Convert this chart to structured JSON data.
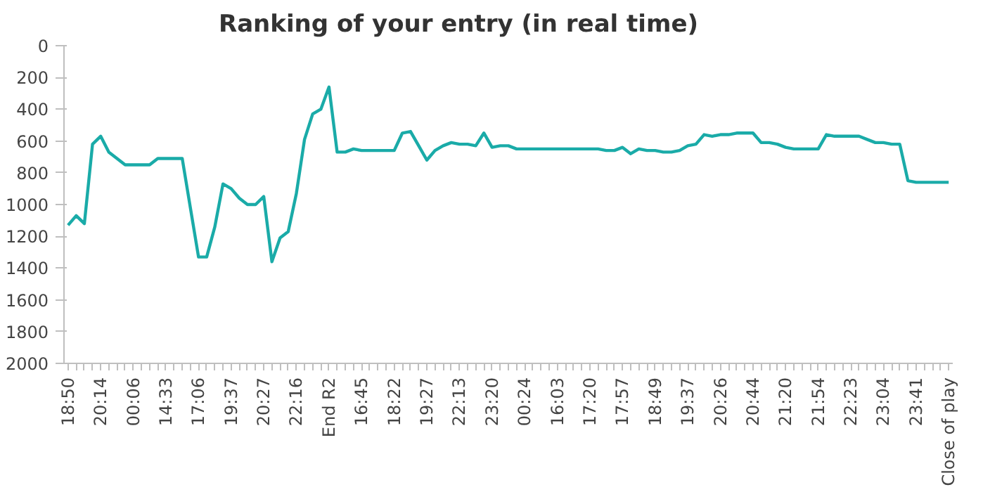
{
  "chart_data": {
    "type": "line",
    "title": "Ranking of your entry (in real time)",
    "categories": [
      "18:50",
      null,
      null,
      null,
      "20:14",
      null,
      null,
      null,
      "00:06",
      null,
      null,
      null,
      "14:33",
      null,
      null,
      null,
      "17:06",
      null,
      null,
      null,
      "19:37",
      null,
      null,
      null,
      "20:27",
      null,
      null,
      null,
      "22:16",
      null,
      null,
      null,
      "End R2",
      null,
      null,
      null,
      "16:45",
      null,
      null,
      null,
      "18:22",
      null,
      null,
      null,
      "19:27",
      null,
      null,
      null,
      "22:13",
      null,
      null,
      null,
      "23:20",
      null,
      null,
      null,
      "00:24",
      null,
      null,
      null,
      "16:03",
      null,
      null,
      null,
      "17:20",
      null,
      null,
      null,
      "17:57",
      null,
      null,
      null,
      "18:49",
      null,
      null,
      null,
      "19:37",
      null,
      null,
      null,
      "20:26",
      null,
      null,
      null,
      "20:44",
      null,
      null,
      null,
      "21:20",
      null,
      null,
      null,
      "21:54",
      null,
      null,
      null,
      "22:23",
      null,
      null,
      null,
      "23:04",
      null,
      null,
      null,
      "23:41",
      null,
      null,
      null,
      "Close of play"
    ],
    "series": [
      {
        "color": "#1aaba8",
        "values": [
          1130,
          1070,
          1120,
          620,
          570,
          670,
          710,
          750,
          750,
          750,
          750,
          710,
          710,
          710,
          710,
          1020,
          1330,
          1330,
          1140,
          870,
          900,
          960,
          1000,
          1000,
          950,
          1360,
          1210,
          1170,
          930,
          590,
          430,
          400,
          260,
          670,
          670,
          650,
          660,
          660,
          660,
          660,
          660,
          550,
          540,
          630,
          720,
          660,
          630,
          610,
          620,
          620,
          630,
          550,
          640,
          630,
          630,
          650,
          650,
          650,
          650,
          650,
          650,
          650,
          650,
          650,
          650,
          650,
          660,
          660,
          640,
          680,
          650,
          660,
          660,
          670,
          670,
          660,
          630,
          620,
          560,
          570,
          560,
          560,
          550,
          550,
          550,
          610,
          610,
          620,
          640,
          650,
          650,
          650,
          650,
          560,
          570,
          570,
          570,
          570,
          590,
          610,
          610,
          620,
          620,
          850,
          860,
          860,
          860,
          860,
          860
        ]
      }
    ],
    "ylim": [
      2000,
      0
    ],
    "yticks": [
      0,
      200,
      400,
      600,
      800,
      1000,
      1200,
      1400,
      1600,
      1800,
      2000
    ],
    "grid": false,
    "line_style": "solid"
  }
}
